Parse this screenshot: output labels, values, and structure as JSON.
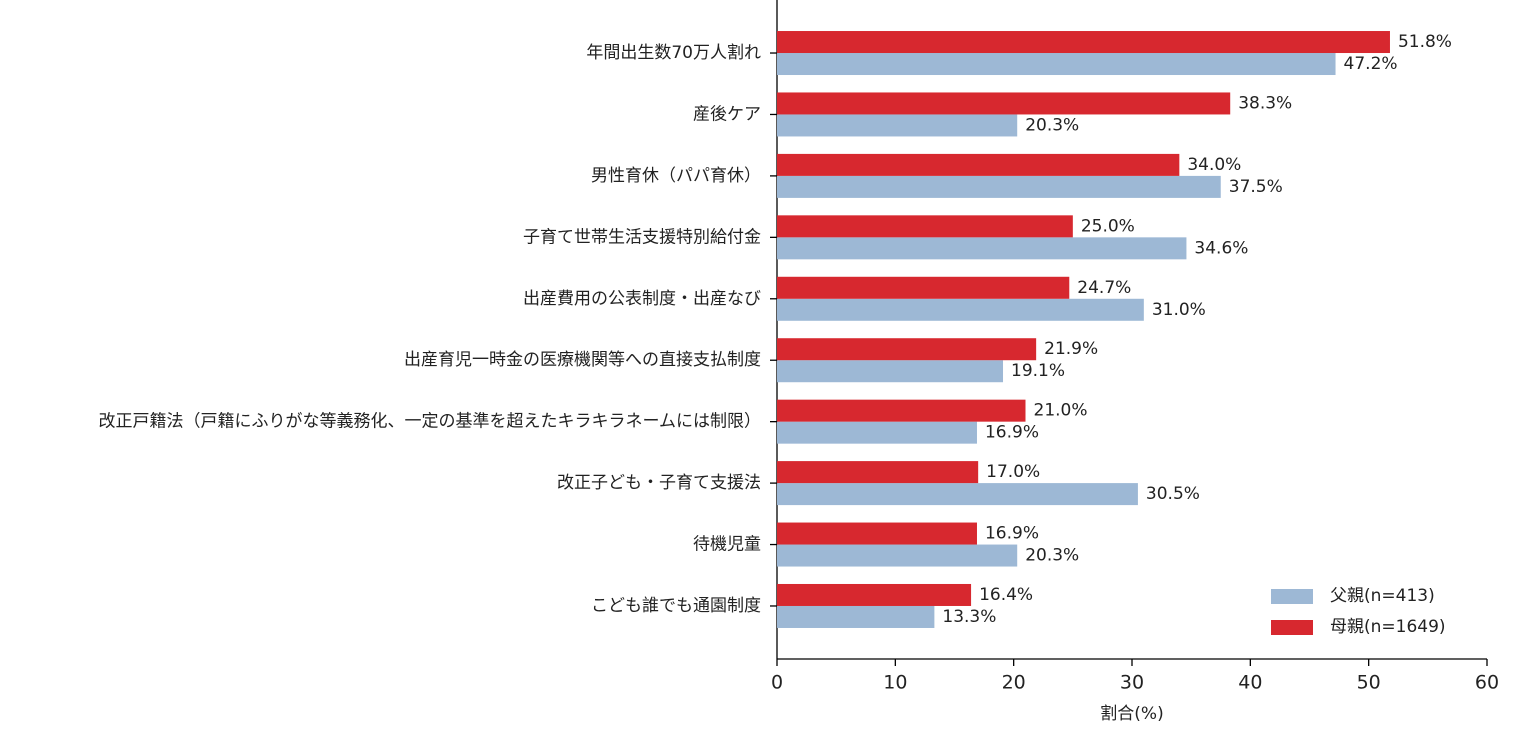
{
  "chart_data": {
    "type": "bar",
    "orientation": "horizontal",
    "categories": [
      "年間出生数70万人割れ",
      "産後ケア",
      "男性育休（パパ育休）",
      "子育て世帯生活支援特別給付金",
      "出産費用の公表制度・出産なび",
      "出産育児一時金の医療機関等への直接支払制度",
      "改正戸籍法（戸籍にふりがな等義務化、一定の基準を超えたキラキラネームには制限）",
      "改正子ども・子育て支援法",
      "待機児童",
      "こども誰でも通園制度"
    ],
    "series": [
      {
        "name": "父親(n=413)",
        "color": "#9db8d5",
        "values": [
          47.2,
          20.3,
          37.5,
          34.6,
          31.0,
          19.1,
          16.9,
          30.5,
          20.3,
          13.3
        ],
        "value_labels": [
          "47.2%",
          "20.3%",
          "37.5%",
          "34.6%",
          "31.0%",
          "19.1%",
          "16.9%",
          "30.5%",
          "20.3%",
          "13.3%"
        ]
      },
      {
        "name": "母親(n=1649)",
        "color": "#d7282f",
        "values": [
          51.8,
          38.3,
          34.0,
          25.0,
          24.7,
          21.9,
          21.0,
          17.0,
          16.9,
          16.4
        ],
        "value_labels": [
          "51.8%",
          "38.3%",
          "34.0%",
          "25.0%",
          "24.7%",
          "21.9%",
          "21.0%",
          "17.0%",
          "16.9%",
          "16.4%"
        ]
      }
    ],
    "xlabel": "割合(%)",
    "xlim": [
      0,
      60
    ],
    "xticks": [
      0,
      10,
      20,
      30,
      40,
      50,
      60
    ],
    "legend": "lower right"
  }
}
